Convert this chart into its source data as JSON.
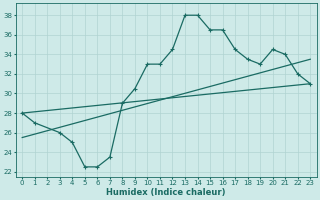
{
  "xlabel": "Humidex (Indice chaleur)",
  "ylabel": "",
  "bg_color": "#ceeae8",
  "grid_color": "#b0d4d2",
  "line_color": "#1a6b63",
  "xlim": [
    -0.5,
    23.5
  ],
  "ylim": [
    21.5,
    39.2
  ],
  "xticks": [
    0,
    1,
    2,
    3,
    4,
    5,
    6,
    7,
    8,
    9,
    10,
    11,
    12,
    13,
    14,
    15,
    16,
    17,
    18,
    19,
    20,
    21,
    22,
    23
  ],
  "yticks": [
    22,
    24,
    26,
    28,
    30,
    32,
    34,
    36,
    38
  ],
  "curve_x": [
    0,
    1,
    3,
    4,
    5,
    6,
    7,
    8,
    9,
    10,
    11,
    12,
    13,
    14,
    15,
    16,
    17,
    18,
    19,
    20,
    21,
    22,
    23
  ],
  "curve_y": [
    28,
    27,
    26,
    25,
    22.5,
    22.5,
    23.5,
    29,
    30.5,
    33,
    33,
    34.5,
    38,
    38,
    36.5,
    36.5,
    34.5,
    33.5,
    33,
    34.5,
    34,
    32,
    31
  ],
  "line1_x": [
    0,
    23
  ],
  "line1_y": [
    28.0,
    31.0
  ],
  "line2_x": [
    0,
    23
  ],
  "line2_y": [
    25.5,
    33.5
  ],
  "marker_size": 2.5,
  "line_width": 0.9,
  "tick_fontsize": 5.0,
  "xlabel_fontsize": 6.0
}
